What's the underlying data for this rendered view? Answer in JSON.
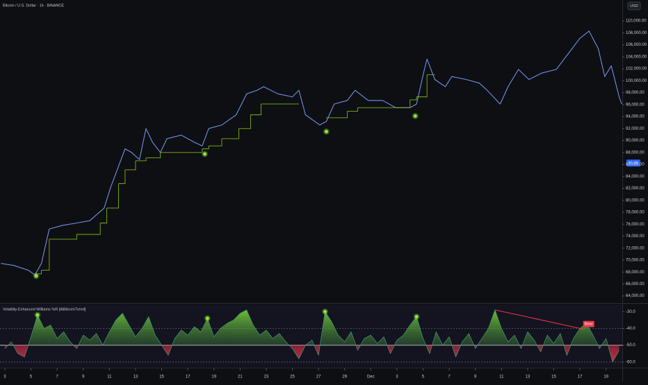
{
  "header": {
    "title": "Bitcoin / U.S. Dollar · 1h · BINANCE",
    "currency": "USD",
    "price_badge": "91:29"
  },
  "chart_data": [
    {
      "type": "line",
      "xlim": [
        -0.37,
        47.24
      ],
      "ylim": [
        62800,
        113500
      ],
      "yticks": [
        {
          "value": 64000,
          "label": "64,000.00"
        },
        {
          "value": 66000,
          "label": "66,000.00"
        },
        {
          "value": 68000,
          "label": "68,000.00"
        },
        {
          "value": 70000,
          "label": "70,000.00"
        },
        {
          "value": 72000,
          "label": "72,000.00"
        },
        {
          "value": 74000,
          "label": "74,000.00"
        },
        {
          "value": 76000,
          "label": "76,000.00"
        },
        {
          "value": 78000,
          "label": "78,000.00"
        },
        {
          "value": 80000,
          "label": "80,000.00"
        },
        {
          "value": 82000,
          "label": "82,000.00"
        },
        {
          "value": 84000,
          "label": "84,000.00"
        },
        {
          "value": 86000,
          "label": "86,000.00"
        },
        {
          "value": 88000,
          "label": "88,000.00"
        },
        {
          "value": 90000,
          "label": "90,000.00"
        },
        {
          "value": 92000,
          "label": "92,000.00"
        },
        {
          "value": 94000,
          "label": "94,000.00"
        },
        {
          "value": 96000,
          "label": "96,000.00"
        },
        {
          "value": 98000,
          "label": "98,000.00"
        },
        {
          "value": 100000,
          "label": "100,000.00"
        },
        {
          "value": 102000,
          "label": "102,000.00"
        },
        {
          "value": 104000,
          "label": "104,000.00"
        },
        {
          "value": 106000,
          "label": "106,000.00"
        },
        {
          "value": 108000,
          "label": "108,000.00"
        },
        {
          "value": 110000,
          "label": "110,000.00"
        }
      ],
      "series": [
        {
          "color": "#7190e6",
          "x": [
            -0.3,
            0.7,
            1.8,
            2.3,
            2.8,
            3.4,
            4.4,
            5.5,
            6.5,
            7.6,
            8.1,
            8.7,
            9.2,
            9.7,
            10.3,
            10.8,
            11.3,
            11.9,
            12.4,
            13.5,
            14.5,
            15.1,
            15.6,
            16.6,
            17.7,
            18.5,
            19.3,
            19.8,
            20.9,
            22.0,
            22.5,
            23.0,
            24.1,
            24.6,
            25.2,
            26.2,
            26.8,
            27.8,
            28.9,
            29.9,
            31.0,
            31.5,
            32.1,
            32.3,
            32.9,
            33.7,
            34.2,
            35.3,
            36.3,
            36.9,
            37.9,
            38.5,
            39.3,
            40.1,
            41.1,
            42.2,
            43.2,
            44.0,
            44.7,
            45.4,
            45.9,
            46.4,
            47.0,
            47.2
          ],
          "values": [
            69450,
            69100,
            68300,
            67500,
            69450,
            75200,
            75800,
            76200,
            76600,
            78700,
            82200,
            85700,
            88600,
            88000,
            86800,
            92000,
            89700,
            88000,
            90300,
            90900,
            89700,
            89100,
            92000,
            92600,
            94300,
            97800,
            98400,
            99000,
            97800,
            97300,
            98400,
            94300,
            92600,
            93200,
            96100,
            96700,
            98400,
            96700,
            96700,
            95500,
            95500,
            96100,
            101900,
            103600,
            100200,
            99000,
            100700,
            100200,
            99600,
            98400,
            96100,
            99000,
            101900,
            100200,
            101300,
            101900,
            104800,
            107100,
            108300,
            105400,
            100700,
            102500,
            97300,
            96100
          ]
        },
        {
          "color": "#7cb518",
          "step": true,
          "x": [
            2.3,
            2.8,
            3.4,
            5.5,
            7.3,
            7.8,
            8.7,
            9.2,
            10.0,
            10.8,
            11.9,
            15.1,
            15.6,
            16.6,
            17.9,
            18.8,
            19.6,
            22.5,
            22.6,
            24.6,
            26.2,
            27.0,
            29.0,
            31.0,
            31.5,
            32.3,
            32.9
          ],
          "values": [
            67700,
            68300,
            73500,
            74300,
            76200,
            78700,
            82800,
            85100,
            86600,
            87100,
            88000,
            88600,
            89100,
            90300,
            92000,
            94300,
            96100,
            96100,
            null,
            93800,
            94900,
            95500,
            95500,
            96800,
            97300,
            101000,
            101000
          ]
        }
      ],
      "markers": {
        "color": "#8fe33a",
        "x": [
          2.4,
          15.3,
          24.6,
          31.4
        ],
        "values": [
          67350,
          87750,
          91500,
          94100
        ]
      }
    },
    {
      "type": "area",
      "title": "Volatility-Enhanced Williams %R [AlBitcoinTrend]",
      "xlim": [
        -0.37,
        47.24
      ],
      "ylim": [
        -62.1,
        -25.8
      ],
      "yticks": [
        {
          "value": -30,
          "label": "-30.0"
        },
        {
          "value": -40,
          "label": "-40.0"
        },
        {
          "value": -50,
          "label": "-50.0"
        },
        {
          "value": -60,
          "label": "-60.0"
        }
      ],
      "xticks": [
        {
          "value": 0,
          "label": "3"
        },
        {
          "value": 2,
          "label": "5"
        },
        {
          "value": 4,
          "label": "7"
        },
        {
          "value": 6,
          "label": "9"
        },
        {
          "value": 8,
          "label": "11"
        },
        {
          "value": 10,
          "label": "13"
        },
        {
          "value": 12,
          "label": "15"
        },
        {
          "value": 14,
          "label": "17"
        },
        {
          "value": 16,
          "label": "19"
        },
        {
          "value": 18,
          "label": "21"
        },
        {
          "value": 20,
          "label": "23"
        },
        {
          "value": 22,
          "label": "25"
        },
        {
          "value": 24,
          "label": "27"
        },
        {
          "value": 26,
          "label": "29"
        },
        {
          "value": 28,
          "label": "Dec"
        },
        {
          "value": 30,
          "label": "3"
        },
        {
          "value": 32,
          "label": "5"
        },
        {
          "value": 34,
          "label": "7"
        },
        {
          "value": 36,
          "label": "9"
        },
        {
          "value": 38,
          "label": "11"
        },
        {
          "value": 40,
          "label": "13"
        },
        {
          "value": 42,
          "label": "15"
        },
        {
          "value": 44,
          "label": "17"
        },
        {
          "value": 46,
          "label": "19"
        }
      ],
      "fill_baseline": -50,
      "hlines": [
        {
          "value": -40,
          "dashed": true
        },
        {
          "value": -50,
          "dashed": false
        },
        {
          "value": -60,
          "dashed": true
        }
      ],
      "series": [
        {
          "color": "#3f8f6a",
          "x": [
            0,
            0.5,
            1,
            1.5,
            2,
            2.5,
            3,
            3.5,
            4,
            4.5,
            5,
            5.5,
            6,
            6.5,
            7,
            7.5,
            8,
            8.5,
            9,
            9.5,
            10,
            10.5,
            11,
            11.5,
            12,
            12.5,
            13,
            13.5,
            14,
            14.5,
            15,
            15.5,
            16,
            16.5,
            17,
            17.5,
            18,
            18.5,
            19,
            19.5,
            20,
            20.5,
            21,
            21.5,
            22,
            22.5,
            23,
            23.5,
            24,
            24.5,
            25,
            25.5,
            26,
            26.5,
            27,
            27.5,
            28,
            28.5,
            29,
            29.5,
            30,
            30.5,
            31,
            31.5,
            32,
            32.5,
            33,
            33.5,
            34,
            34.5,
            35,
            35.5,
            36,
            36.5,
            37,
            37.5,
            38,
            38.5,
            39,
            39.5,
            40,
            40.5,
            41,
            41.5,
            42,
            42.5,
            43,
            43.5,
            44,
            44.5,
            45,
            45.5,
            46,
            46.5,
            47
          ],
          "values": [
            -52,
            -48,
            -55,
            -57,
            -45,
            -32,
            -40,
            -38,
            -46,
            -42,
            -48,
            -52,
            -44,
            -47,
            -43,
            -50,
            -42,
            -35,
            -31,
            -38,
            -45,
            -40,
            -33,
            -44,
            -50,
            -56,
            -46,
            -41,
            -44,
            -39,
            -42,
            -34,
            -45,
            -40,
            -37,
            -35,
            -31,
            -29,
            -38,
            -44,
            -41,
            -46,
            -43,
            -48,
            -52,
            -58,
            -50,
            -47,
            -56,
            -30,
            -36,
            -44,
            -48,
            -42,
            -53,
            -46,
            -44,
            -49,
            -45,
            -55,
            -47,
            -44,
            -38,
            -33,
            -46,
            -55,
            -42,
            -50,
            -45,
            -57,
            -48,
            -43,
            -52,
            -46,
            -40,
            -29,
            -40,
            -48,
            -44,
            -52,
            -42,
            -47,
            -54,
            -44,
            -49,
            -43,
            -56,
            -46,
            -40,
            -37,
            -44,
            -52,
            -46,
            -60,
            -53
          ]
        }
      ],
      "markers": {
        "color": "#8fe33a",
        "x": [
          2.5,
          15.5,
          24.5,
          31.5
        ],
        "values": [
          -32,
          -34,
          -30,
          -33
        ]
      },
      "annotations": [
        {
          "text": "Bear",
          "color": "#f23645",
          "x": [
            37.5,
            44.3
          ],
          "values": [
            -29,
            -40.5
          ]
        }
      ]
    }
  ]
}
